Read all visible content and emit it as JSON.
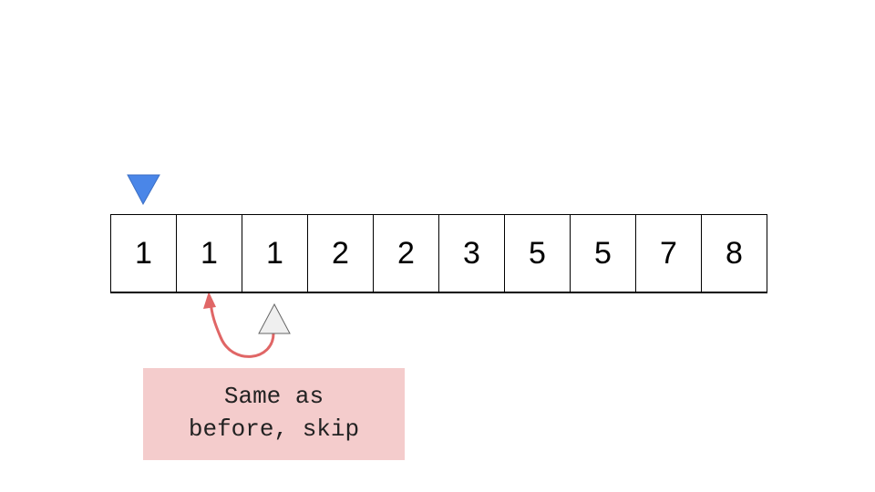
{
  "array": {
    "values": [
      "1",
      "1",
      "1",
      "2",
      "2",
      "3",
      "5",
      "5",
      "7",
      "8"
    ]
  },
  "pointers": {
    "blue_pointer_index": 0,
    "grey_pointer_index": 2,
    "blue_color": "#4a86e8",
    "grey_color": "#efefef"
  },
  "arrow": {
    "color": "#e06666",
    "from_index": 2,
    "to_index": 1
  },
  "note": {
    "text": "Same as\nbefore, skip",
    "background": "#f4cccc"
  }
}
